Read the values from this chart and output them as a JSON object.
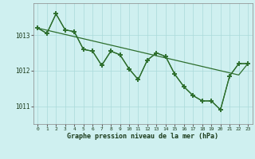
{
  "title": "Graphe pression niveau de la mer (hPa)",
  "bg_color": "#cff0f0",
  "grid_color": "#aadada",
  "line_color": "#2d6e2d",
  "x_labels": [
    "0",
    "1",
    "2",
    "3",
    "4",
    "5",
    "6",
    "7",
    "8",
    "9",
    "10",
    "11",
    "12",
    "13",
    "14",
    "15",
    "16",
    "17",
    "18",
    "19",
    "20",
    "21",
    "22",
    "23"
  ],
  "ylim": [
    1010.5,
    1013.9
  ],
  "yticks": [
    1011,
    1012,
    1013
  ],
  "series_jagged1": [
    1013.2,
    1013.05,
    1013.6,
    1013.15,
    1013.1,
    1012.6,
    1012.55,
    1012.15,
    1012.55,
    1012.45,
    1012.05,
    1011.75,
    1012.3,
    1012.5,
    1012.4,
    1011.9,
    1011.55,
    1011.3,
    1011.15,
    1011.15,
    1010.9,
    1011.85,
    1012.2,
    1012.2
  ],
  "series_jagged2": [
    1013.2,
    1013.05,
    1013.6,
    1013.15,
    1013.1,
    1012.6,
    1012.55,
    1012.15,
    1012.55,
    1012.45,
    1012.05,
    1011.75,
    1012.3,
    1012.5,
    1012.4,
    1011.9,
    1011.55,
    1011.3,
    1011.15,
    1011.15,
    1010.9,
    1011.85,
    1012.2,
    1012.2
  ],
  "series_trend": [
    1013.2,
    1013.14,
    1013.08,
    1013.02,
    1012.96,
    1012.9,
    1012.84,
    1012.78,
    1012.72,
    1012.66,
    1012.6,
    1012.54,
    1012.48,
    1012.42,
    1012.36,
    1012.3,
    1012.24,
    1012.18,
    1012.12,
    1012.06,
    1012.0,
    1011.94,
    1011.88,
    1012.2
  ]
}
